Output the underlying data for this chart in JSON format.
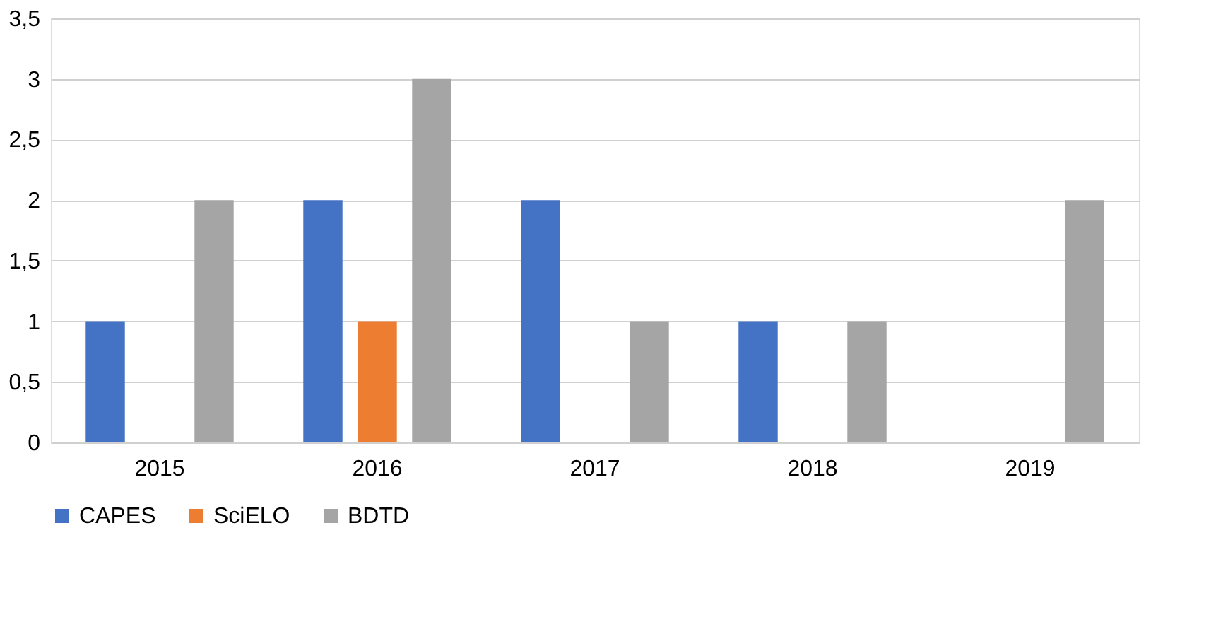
{
  "chart_data": {
    "type": "bar",
    "categories": [
      "2015",
      "2016",
      "2017",
      "2018",
      "2019"
    ],
    "series": [
      {
        "name": "CAPES",
        "color": "#4472c4",
        "values": [
          1,
          2,
          2,
          1,
          0
        ]
      },
      {
        "name": "SciELO",
        "color": "#ed7d31",
        "values": [
          0,
          1,
          0,
          0,
          0
        ]
      },
      {
        "name": "BDTD",
        "color": "#a5a5a5",
        "values": [
          2,
          3,
          1,
          1,
          2
        ]
      }
    ],
    "ylim": [
      0,
      3.5
    ],
    "yticks": [
      0,
      {
        "value": 0.5,
        "label": "0,5"
      },
      1,
      {
        "value": 1.5,
        "label": "1,5"
      },
      2,
      {
        "value": 2.5,
        "label": "2,5"
      },
      3,
      {
        "value": 3.5,
        "label": "3,5"
      }
    ],
    "grid": "y",
    "legend": "bottom"
  }
}
